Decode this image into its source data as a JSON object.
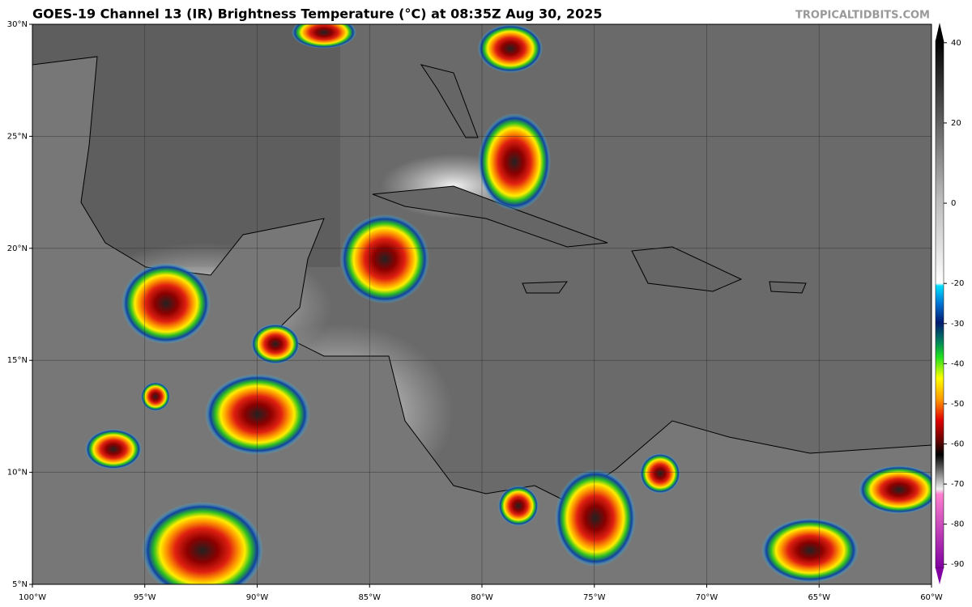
{
  "title": "GOES-19 Channel 13 (IR) Brightness Temperature (°C) at 08:35Z Aug 30, 2025",
  "watermark": "TROPICALTIDBITS.COM",
  "map": {
    "xlim": [
      -100,
      -60
    ],
    "ylim": [
      5,
      30
    ],
    "xticks": [
      {
        "value": -100,
        "label": "100°W"
      },
      {
        "value": -95,
        "label": "95°W"
      },
      {
        "value": -90,
        "label": "90°W"
      },
      {
        "value": -85,
        "label": "85°W"
      },
      {
        "value": -80,
        "label": "80°W"
      },
      {
        "value": -75,
        "label": "75°W"
      },
      {
        "value": -70,
        "label": "70°W"
      },
      {
        "value": -65,
        "label": "65°W"
      },
      {
        "value": -60,
        "label": "60°W"
      }
    ],
    "yticks": [
      {
        "value": 5,
        "label": "5°N"
      },
      {
        "value": 10,
        "label": "10°N"
      },
      {
        "value": 15,
        "label": "15°N"
      },
      {
        "value": 20,
        "label": "20°N"
      },
      {
        "value": 25,
        "label": "25°N"
      },
      {
        "value": 30,
        "label": "30°N"
      }
    ],
    "grid": true
  },
  "colorbar": {
    "lim": [
      -95,
      45
    ],
    "ticks": [
      40,
      20,
      0,
      -20,
      -30,
      -40,
      -50,
      -60,
      -70,
      -80,
      -90
    ]
  }
}
